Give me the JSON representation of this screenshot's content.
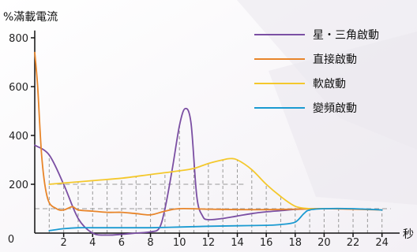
{
  "chart_data": {
    "type": "line",
    "title": "",
    "ylabel": "%滿載電流",
    "xlabel": "秒",
    "xlim": [
      0,
      25
    ],
    "ylim": [
      0,
      800
    ],
    "xticks": [
      2,
      4,
      6,
      8,
      10,
      12,
      14,
      16,
      18,
      20,
      22,
      24
    ],
    "yticks": [
      200,
      400,
      600,
      800
    ],
    "origin_label": "0",
    "reference_line": 100,
    "legend_position": "top-right",
    "series": [
      {
        "name": "星・三角啟動",
        "color": "#7b4fa3",
        "points": [
          [
            0,
            360
          ],
          [
            1,
            320
          ],
          [
            2,
            200
          ],
          [
            3,
            60
          ],
          [
            4,
            0
          ],
          [
            5,
            -8
          ],
          [
            6,
            -5
          ],
          [
            7,
            0
          ],
          [
            8,
            5
          ],
          [
            8.6,
            20
          ],
          [
            9,
            100
          ],
          [
            9.5,
            260
          ],
          [
            10,
            440
          ],
          [
            10.4,
            510
          ],
          [
            10.8,
            450
          ],
          [
            11.2,
            150
          ],
          [
            11.6,
            70
          ],
          [
            12,
            55
          ],
          [
            13,
            60
          ],
          [
            14,
            70
          ],
          [
            15,
            80
          ],
          [
            16,
            87
          ],
          [
            17,
            92
          ],
          [
            18,
            97
          ],
          [
            19,
            100
          ],
          [
            20,
            100
          ]
        ]
      },
      {
        "name": "直接啟動",
        "color": "#e8852a",
        "points": [
          [
            0,
            740
          ],
          [
            0.2,
            600
          ],
          [
            0.5,
            300
          ],
          [
            0.9,
            140
          ],
          [
            1.5,
            100
          ],
          [
            2,
            95
          ],
          [
            2.6,
            108
          ],
          [
            3,
            95
          ],
          [
            4,
            90
          ],
          [
            5,
            85
          ],
          [
            6,
            85
          ],
          [
            7,
            80
          ],
          [
            8,
            75
          ],
          [
            9,
            90
          ],
          [
            10,
            100
          ],
          [
            12,
            98
          ],
          [
            14,
            96
          ],
          [
            16,
            96
          ],
          [
            18,
            98
          ],
          [
            20,
            100
          ],
          [
            22,
            98
          ],
          [
            24,
            95
          ]
        ]
      },
      {
        "name": "軟啟動",
        "color": "#f4c82c",
        "points": [
          [
            1,
            200
          ],
          [
            2,
            205
          ],
          [
            4,
            215
          ],
          [
            6,
            225
          ],
          [
            8,
            240
          ],
          [
            10,
            255
          ],
          [
            11,
            265
          ],
          [
            12,
            285
          ],
          [
            13,
            300
          ],
          [
            13.5,
            305
          ],
          [
            14,
            300
          ],
          [
            15,
            260
          ],
          [
            16,
            200
          ],
          [
            17,
            150
          ],
          [
            18,
            110
          ],
          [
            19,
            100
          ],
          [
            20,
            100
          ]
        ]
      },
      {
        "name": "變頻啟動",
        "color": "#1a9ad1",
        "points": [
          [
            1,
            10
          ],
          [
            2,
            18
          ],
          [
            3,
            22
          ],
          [
            4,
            22
          ],
          [
            6,
            22
          ],
          [
            8,
            22
          ],
          [
            10,
            25
          ],
          [
            12,
            28
          ],
          [
            14,
            30
          ],
          [
            16,
            32
          ],
          [
            17,
            35
          ],
          [
            18,
            45
          ],
          [
            18.6,
            80
          ],
          [
            19,
            95
          ],
          [
            20,
            100
          ],
          [
            22,
            100
          ],
          [
            24,
            95
          ]
        ]
      }
    ]
  }
}
